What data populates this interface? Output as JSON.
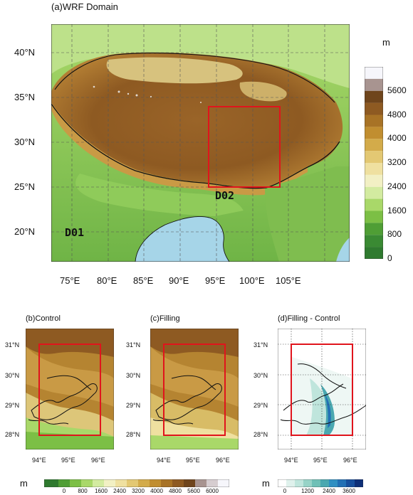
{
  "panel_a": {
    "title": "(a)WRF Domain",
    "unit": "m",
    "lat_labels": [
      "40°N",
      "35°N",
      "30°N",
      "25°N",
      "20°N"
    ],
    "lon_labels": [
      "75°E",
      "80°E",
      "85°E",
      "90°E",
      "95°E",
      "100°E",
      "105°E"
    ],
    "colorbar_labels": [
      "5600",
      "4800",
      "4000",
      "3200",
      "2400",
      "1600",
      "800",
      "0"
    ],
    "domain_labels": {
      "outer": "D01",
      "inner": "D02"
    },
    "box_color": "#e0141c"
  },
  "panel_b": {
    "title": "(b)Control",
    "lat_labels": [
      "31°N",
      "30°N",
      "29°N",
      "28°N"
    ],
    "lon_labels": [
      "94°E",
      "95°E",
      "96°E"
    ]
  },
  "panel_c": {
    "title": "(c)Filling",
    "lat_labels": [
      "31°N",
      "30°N",
      "29°N",
      "28°N"
    ],
    "lon_labels": [
      "94°E",
      "95°E",
      "96°E"
    ]
  },
  "panel_d": {
    "title": "(d)Filling - Control",
    "lat_labels": [
      "31°N",
      "30°N",
      "29°N",
      "28°N"
    ],
    "lon_labels": [
      "94°E",
      "95°E",
      "96°E"
    ]
  },
  "bottom_colorbar_left": {
    "unit": "m",
    "labels": [
      "0",
      "800",
      "1600",
      "2400",
      "3200",
      "4000",
      "4800",
      "5600",
      "6000"
    ]
  },
  "bottom_colorbar_right": {
    "unit": "m",
    "labels": [
      "0",
      "1200",
      "2400",
      "3600"
    ]
  },
  "colors": {
    "terrain_scale": [
      "#2f7a2f",
      "#4f9e35",
      "#7cbf45",
      "#a9d869",
      "#d3eba0",
      "#f2f0c4",
      "#efe0a0",
      "#e3c873",
      "#d3ab4a",
      "#c18e30",
      "#a87326",
      "#8e5a22",
      "#6f451c",
      "#9a8578",
      "#bfb3b3",
      "#f6f6fb"
    ],
    "diff_scale": [
      "#ffffff",
      "#dff1ec",
      "#bfe5dc",
      "#97d3c7",
      "#6fc0b6",
      "#4aa8b0",
      "#2f8fc2",
      "#2270b5",
      "#174f9d",
      "#0e2f78"
    ],
    "water": "#a6d5e8"
  }
}
